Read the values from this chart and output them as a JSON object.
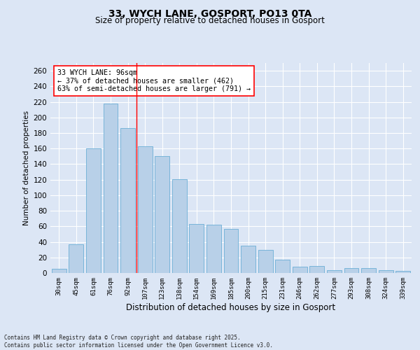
{
  "title": "33, WYCH LANE, GOSPORT, PO13 0TA",
  "subtitle": "Size of property relative to detached houses in Gosport",
  "xlabel": "Distribution of detached houses by size in Gosport",
  "ylabel": "Number of detached properties",
  "categories": [
    "30sqm",
    "45sqm",
    "61sqm",
    "76sqm",
    "92sqm",
    "107sqm",
    "123sqm",
    "138sqm",
    "154sqm",
    "169sqm",
    "185sqm",
    "200sqm",
    "215sqm",
    "231sqm",
    "246sqm",
    "262sqm",
    "277sqm",
    "293sqm",
    "308sqm",
    "324sqm",
    "339sqm"
  ],
  "values": [
    5,
    37,
    160,
    218,
    186,
    163,
    150,
    121,
    63,
    62,
    57,
    35,
    30,
    17,
    8,
    9,
    4,
    6,
    6,
    4,
    3
  ],
  "bar_color": "#b8d0e8",
  "bar_edge_color": "#6baed6",
  "vline_x": 4.5,
  "vline_color": "red",
  "annotation_text": "33 WYCH LANE: 96sqm\n← 37% of detached houses are smaller (462)\n63% of semi-detached houses are larger (791) →",
  "annotation_box_color": "white",
  "annotation_box_edge": "red",
  "ylim": [
    0,
    270
  ],
  "yticks": [
    0,
    20,
    40,
    60,
    80,
    100,
    120,
    140,
    160,
    180,
    200,
    220,
    240,
    260
  ],
  "bg_color": "#dce6f5",
  "grid_color": "white",
  "footer": "Contains HM Land Registry data © Crown copyright and database right 2025.\nContains public sector information licensed under the Open Government Licence v3.0."
}
